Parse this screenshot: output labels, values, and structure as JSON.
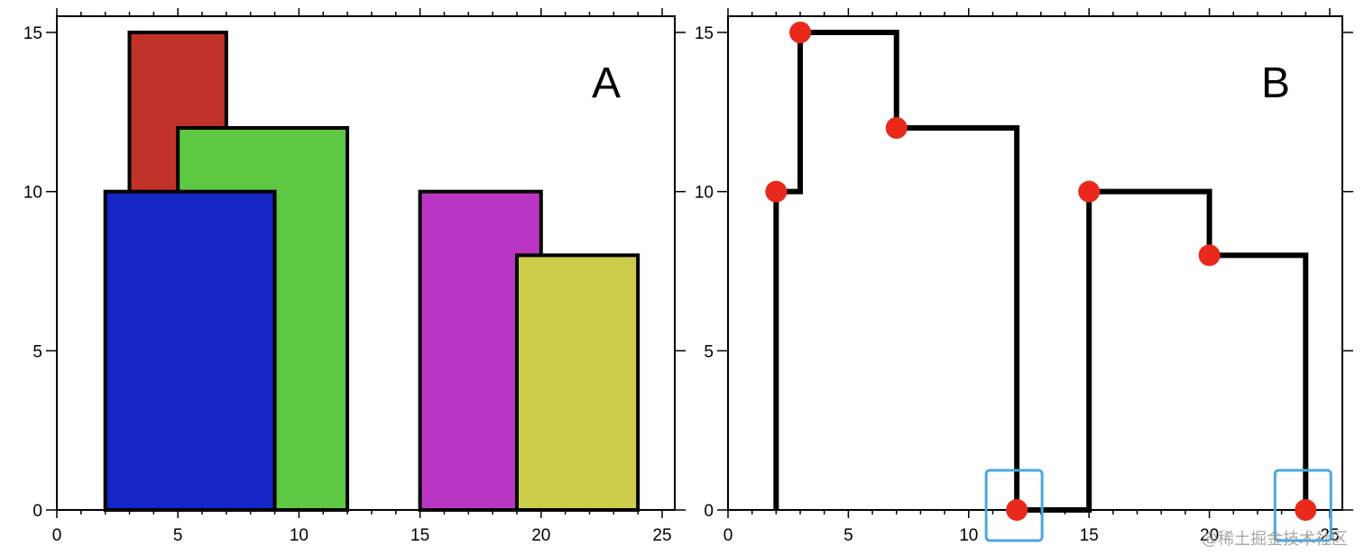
{
  "watermark": "@稀土掘金技术社区",
  "chart_data": [
    {
      "type": "bar",
      "panel_label": "A",
      "xlim": [
        0,
        25
      ],
      "ylim": [
        0,
        15
      ],
      "x_ticks": [
        0,
        5,
        10,
        15,
        20,
        25
      ],
      "y_ticks": [
        0,
        5,
        10,
        15
      ],
      "grid": false,
      "buildings": [
        {
          "left": 3,
          "right": 7,
          "height": 15,
          "color": "#c0322a"
        },
        {
          "left": 5,
          "right": 12,
          "height": 12,
          "color": "#5fc843"
        },
        {
          "left": 2,
          "right": 9,
          "height": 10,
          "color": "#1524c4"
        },
        {
          "left": 15,
          "right": 20,
          "height": 10,
          "color": "#bb35c4"
        },
        {
          "left": 19,
          "right": 24,
          "height": 8,
          "color": "#cdcc4a"
        }
      ]
    },
    {
      "type": "line",
      "panel_label": "B",
      "xlim": [
        0,
        25
      ],
      "ylim": [
        0,
        15
      ],
      "x_ticks": [
        0,
        5,
        10,
        15,
        20,
        25
      ],
      "y_ticks": [
        0,
        5,
        10,
        15
      ],
      "grid": false,
      "skyline_path": [
        [
          2,
          0
        ],
        [
          2,
          10
        ],
        [
          3,
          10
        ],
        [
          3,
          15
        ],
        [
          7,
          15
        ],
        [
          7,
          12
        ],
        [
          12,
          12
        ],
        [
          12,
          0
        ],
        [
          15,
          0
        ],
        [
          15,
          10
        ],
        [
          20,
          10
        ],
        [
          20,
          8
        ],
        [
          24,
          8
        ],
        [
          24,
          0
        ]
      ],
      "key_points": [
        [
          2,
          10
        ],
        [
          3,
          15
        ],
        [
          7,
          12
        ],
        [
          12,
          0
        ],
        [
          15,
          10
        ],
        [
          20,
          8
        ],
        [
          24,
          0
        ]
      ],
      "highlighted_points": [
        [
          12,
          0
        ],
        [
          24,
          0
        ]
      ],
      "point_color": "#e8291c",
      "highlight_color": "#4aa8e0"
    }
  ]
}
